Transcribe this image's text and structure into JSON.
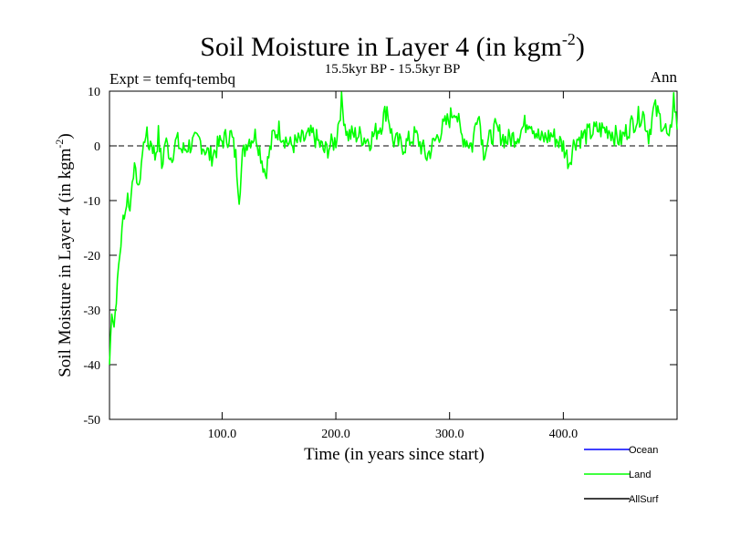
{
  "chart_data": {
    "type": "line",
    "title": "Soil Moisture in Layer 4 (in kgm",
    "title_superscript": "-2",
    "title_close": ")",
    "subtitle": "15.5kyr BP - 15.5kyr BP",
    "expt_label": "Expt = temfq-tembq",
    "season_label": "Ann",
    "xlabel": "Time (in years since start)",
    "ylabel": "Soil Moisture in Layer 4 (in kgm",
    "ylabel_superscript": "-2",
    "ylabel_close": ")",
    "xlim": [
      1,
      500
    ],
    "ylim": [
      -50,
      10
    ],
    "x_ticks": [
      100,
      200,
      300,
      400
    ],
    "x_tick_labels": [
      "100.0",
      "200.0",
      "300.0",
      "400.0"
    ],
    "y_ticks": [
      -50,
      -40,
      -30,
      -20,
      -10,
      0,
      10
    ],
    "y_tick_labels": [
      "-50",
      "-40",
      "-30",
      "-20",
      "-10",
      "0",
      "10"
    ],
    "zero_line": {
      "value": 0,
      "style": "dashed"
    },
    "legend": [
      {
        "name": "Ocean",
        "color": "#0000ff"
      },
      {
        "name": "Land",
        "color": "#00ff00"
      },
      {
        "name": "AllSurf",
        "color": "#000000"
      }
    ],
    "series": [
      {
        "name": "Land",
        "color": "#00ff00",
        "anchors": [
          [
            1,
            -40
          ],
          [
            3,
            -30
          ],
          [
            5,
            -33
          ],
          [
            7,
            -28
          ],
          [
            9,
            -22
          ],
          [
            11,
            -18
          ],
          [
            13,
            -13
          ],
          [
            15,
            -12
          ],
          [
            17,
            -9
          ],
          [
            19,
            -12
          ],
          [
            21,
            -6
          ],
          [
            23,
            -4
          ],
          [
            25,
            -6
          ],
          [
            27,
            -8
          ],
          [
            29,
            -3
          ],
          [
            31,
            0
          ],
          [
            33,
            3
          ],
          [
            35,
            0
          ],
          [
            38,
            1
          ],
          [
            41,
            -2
          ],
          [
            44,
            2
          ],
          [
            47,
            -4
          ],
          [
            50,
            1
          ],
          [
            55,
            -2
          ],
          [
            60,
            1
          ],
          [
            65,
            -1
          ],
          [
            70,
            0
          ],
          [
            80,
            1
          ],
          [
            90,
            -2
          ],
          [
            100,
            1
          ],
          [
            108,
            2
          ],
          [
            112,
            -2
          ],
          [
            115,
            -9
          ],
          [
            118,
            -2
          ],
          [
            122,
            1
          ],
          [
            130,
            2
          ],
          [
            138,
            -5
          ],
          [
            145,
            2
          ],
          [
            150,
            3
          ],
          [
            160,
            0
          ],
          [
            170,
            1
          ],
          [
            180,
            2
          ],
          [
            190,
            -1
          ],
          [
            200,
            1
          ],
          [
            205,
            8
          ],
          [
            210,
            2
          ],
          [
            220,
            2
          ],
          [
            230,
            1
          ],
          [
            240,
            4
          ],
          [
            245,
            7
          ],
          [
            250,
            1
          ],
          [
            260,
            0
          ],
          [
            270,
            2
          ],
          [
            280,
            -2
          ],
          [
            290,
            2
          ],
          [
            300,
            5
          ],
          [
            305,
            7
          ],
          [
            310,
            2
          ],
          [
            320,
            0
          ],
          [
            325,
            7
          ],
          [
            330,
            -1
          ],
          [
            340,
            3
          ],
          [
            350,
            1
          ],
          [
            360,
            2
          ],
          [
            370,
            5
          ],
          [
            380,
            1
          ],
          [
            390,
            2
          ],
          [
            400,
            0
          ],
          [
            405,
            -3
          ],
          [
            410,
            1
          ],
          [
            420,
            2
          ],
          [
            430,
            3
          ],
          [
            440,
            3
          ],
          [
            450,
            1
          ],
          [
            460,
            4
          ],
          [
            470,
            6
          ],
          [
            475,
            2
          ],
          [
            480,
            7
          ],
          [
            490,
            3
          ],
          [
            493,
            0
          ],
          [
            497,
            9
          ],
          [
            500,
            3
          ]
        ]
      }
    ]
  }
}
